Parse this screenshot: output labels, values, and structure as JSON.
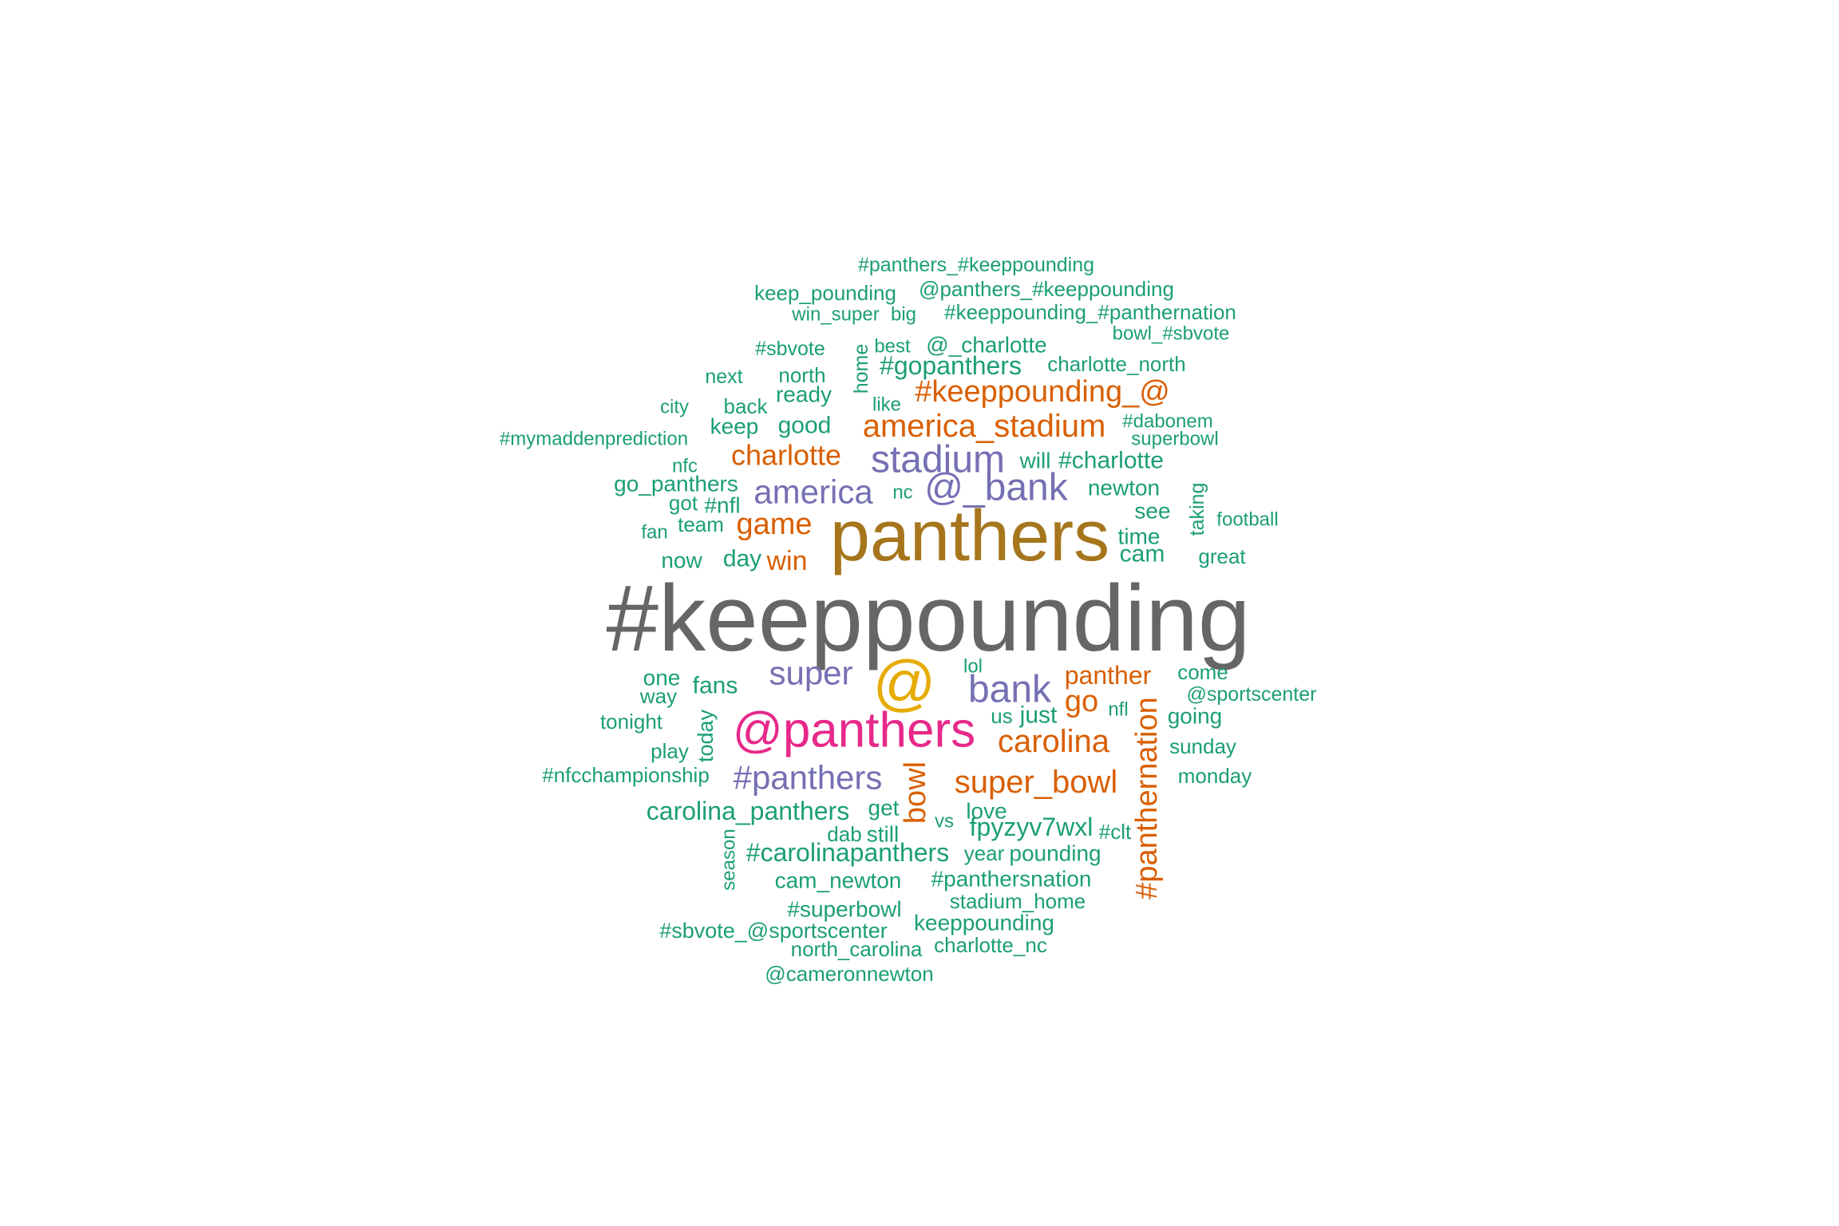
{
  "palette": {
    "teal": "#1b9e77",
    "orange": "#d95f02",
    "purple": "#7570b3",
    "magenta": "#e7298a",
    "gold": "#e6ab02",
    "brown": "#a6761d",
    "gray": "#666666"
  },
  "words": [
    {
      "text": "#keeppounding",
      "color": "gray"
    },
    {
      "text": "panthers",
      "color": "brown"
    },
    {
      "text": "@panthers",
      "color": "magenta"
    },
    {
      "text": "@",
      "color": "gold"
    },
    {
      "text": "@_bank",
      "color": "purple"
    },
    {
      "text": "stadium",
      "color": "purple"
    },
    {
      "text": "america",
      "color": "purple"
    },
    {
      "text": "bank",
      "color": "purple"
    },
    {
      "text": "super",
      "color": "purple"
    },
    {
      "text": "#panthers",
      "color": "purple"
    },
    {
      "text": "america_stadium",
      "color": "orange"
    },
    {
      "text": "#keeppounding_@",
      "color": "orange"
    },
    {
      "text": "charlotte",
      "color": "orange"
    },
    {
      "text": "game",
      "color": "orange"
    },
    {
      "text": "win",
      "color": "orange"
    },
    {
      "text": "carolina",
      "color": "orange"
    },
    {
      "text": "super_bowl",
      "color": "orange"
    },
    {
      "text": "go",
      "color": "orange"
    },
    {
      "text": "panther",
      "color": "orange"
    },
    {
      "text": "bowl",
      "color": "orange"
    },
    {
      "text": "#panthernation",
      "color": "orange"
    },
    {
      "text": "#panthers_#keeppounding",
      "color": "teal"
    },
    {
      "text": "keep_pounding",
      "color": "teal"
    },
    {
      "text": "@panthers_#keeppounding",
      "color": "teal"
    },
    {
      "text": "win_super",
      "color": "teal"
    },
    {
      "text": "big",
      "color": "teal"
    },
    {
      "text": "#keeppounding_#panthernation",
      "color": "teal"
    },
    {
      "text": "bowl_#sbvote",
      "color": "teal"
    },
    {
      "text": "#sbvote",
      "color": "teal"
    },
    {
      "text": "best",
      "color": "teal"
    },
    {
      "text": "@_charlotte",
      "color": "teal"
    },
    {
      "text": "home",
      "color": "teal"
    },
    {
      "text": "#gopanthers",
      "color": "teal"
    },
    {
      "text": "charlotte_north",
      "color": "teal"
    },
    {
      "text": "next",
      "color": "teal"
    },
    {
      "text": "north",
      "color": "teal"
    },
    {
      "text": "ready",
      "color": "teal"
    },
    {
      "text": "city",
      "color": "teal"
    },
    {
      "text": "back",
      "color": "teal"
    },
    {
      "text": "like",
      "color": "teal"
    },
    {
      "text": "keep",
      "color": "teal"
    },
    {
      "text": "good",
      "color": "teal"
    },
    {
      "text": "#dabonem",
      "color": "teal"
    },
    {
      "text": "superbowl",
      "color": "teal"
    },
    {
      "text": "#mymaddenprediction",
      "color": "teal"
    },
    {
      "text": "will",
      "color": "teal"
    },
    {
      "text": "#charlotte",
      "color": "teal"
    },
    {
      "text": "nfc",
      "color": "teal"
    },
    {
      "text": "go_panthers",
      "color": "teal"
    },
    {
      "text": "newton",
      "color": "teal"
    },
    {
      "text": "nc",
      "color": "teal"
    },
    {
      "text": "got",
      "color": "teal"
    },
    {
      "text": "#nfl",
      "color": "teal"
    },
    {
      "text": "taking",
      "color": "teal"
    },
    {
      "text": "see",
      "color": "teal"
    },
    {
      "text": "team",
      "color": "teal"
    },
    {
      "text": "football",
      "color": "teal"
    },
    {
      "text": "fan",
      "color": "teal"
    },
    {
      "text": "time",
      "color": "teal"
    },
    {
      "text": "now",
      "color": "teal"
    },
    {
      "text": "day",
      "color": "teal"
    },
    {
      "text": "cam",
      "color": "teal"
    },
    {
      "text": "great",
      "color": "teal"
    },
    {
      "text": "lol",
      "color": "teal"
    },
    {
      "text": "one",
      "color": "teal"
    },
    {
      "text": "come",
      "color": "teal"
    },
    {
      "text": "way",
      "color": "teal"
    },
    {
      "text": "fans",
      "color": "teal"
    },
    {
      "text": "@sportscenter",
      "color": "teal"
    },
    {
      "text": "tonight",
      "color": "teal"
    },
    {
      "text": "today",
      "color": "teal"
    },
    {
      "text": "us",
      "color": "teal"
    },
    {
      "text": "just",
      "color": "teal"
    },
    {
      "text": "nfl",
      "color": "teal"
    },
    {
      "text": "going",
      "color": "teal"
    },
    {
      "text": "play",
      "color": "teal"
    },
    {
      "text": "sunday",
      "color": "teal"
    },
    {
      "text": "#nfcchampionship",
      "color": "teal"
    },
    {
      "text": "monday",
      "color": "teal"
    },
    {
      "text": "carolina_panthers",
      "color": "teal"
    },
    {
      "text": "get",
      "color": "teal"
    },
    {
      "text": "love",
      "color": "teal"
    },
    {
      "text": "vs",
      "color": "teal"
    },
    {
      "text": "dab",
      "color": "teal"
    },
    {
      "text": "still",
      "color": "teal"
    },
    {
      "text": "fpyzyv7wxl",
      "color": "teal"
    },
    {
      "text": "#clt",
      "color": "teal"
    },
    {
      "text": "season",
      "color": "teal"
    },
    {
      "text": "#carolinapanthers",
      "color": "teal"
    },
    {
      "text": "year",
      "color": "teal"
    },
    {
      "text": "pounding",
      "color": "teal"
    },
    {
      "text": "cam_newton",
      "color": "teal"
    },
    {
      "text": "#panthersnation",
      "color": "teal"
    },
    {
      "text": "stadium_home",
      "color": "teal"
    },
    {
      "text": "#superbowl",
      "color": "teal"
    },
    {
      "text": "keeppounding",
      "color": "teal"
    },
    {
      "text": "#sbvote_@sportscenter",
      "color": "teal"
    },
    {
      "text": "north_carolina",
      "color": "teal"
    },
    {
      "text": "charlotte_nc",
      "color": "teal"
    },
    {
      "text": "@cameronnewton",
      "color": "teal"
    }
  ]
}
